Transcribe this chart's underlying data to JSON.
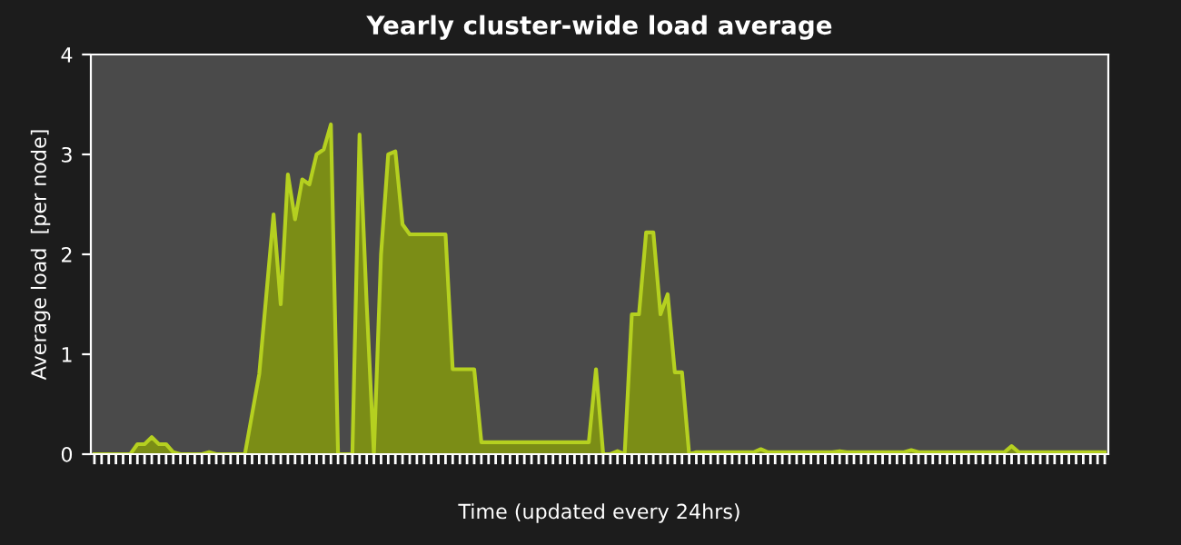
{
  "chart_data": {
    "type": "area",
    "title": "Yearly cluster-wide load average",
    "xlabel": "Time (updated every 24hrs)",
    "ylabel": "Average load  [per node]",
    "categories": [
      null,
      null,
      null,
      null,
      null,
      null,
      null,
      null,
      null,
      null,
      null,
      null,
      null,
      null,
      null,
      null,
      null,
      null,
      null,
      null,
      null,
      null,
      null,
      null,
      null,
      null,
      null,
      null,
      null,
      null,
      null,
      null,
      null,
      null,
      null,
      null,
      null,
      null,
      null,
      null,
      null,
      null,
      null,
      null,
      null,
      null,
      null,
      null,
      null,
      null,
      null,
      null,
      null,
      null,
      null,
      null,
      null,
      null,
      null,
      null,
      null,
      null,
      null,
      null,
      null,
      null,
      null,
      null,
      null,
      null,
      null,
      null,
      null,
      null,
      null,
      null,
      null,
      null,
      null,
      null,
      null,
      null,
      null,
      null,
      null,
      null,
      null,
      null,
      null,
      null,
      null,
      null,
      null,
      null,
      null,
      null,
      null,
      null,
      null,
      null,
      null,
      null,
      null,
      null,
      null,
      null,
      null,
      null,
      null,
      null,
      null,
      null,
      null,
      null,
      null,
      null,
      null,
      null,
      null,
      null,
      null,
      null,
      null,
      null,
      null,
      null,
      null,
      null,
      null,
      null,
      null,
      null,
      null,
      null,
      null,
      null,
      null,
      null,
      null,
      null,
      null,
      null
    ],
    "series": [
      {
        "color": "#b5d020",
        "values": [
          0,
          0,
          0,
          0,
          0,
          0,
          0.1,
          0.1,
          0.17,
          0.1,
          0.1,
          0.02,
          0,
          0,
          0,
          0,
          0.02,
          0,
          0,
          0,
          0,
          0,
          0.4,
          0.8,
          1.6,
          2.4,
          1.5,
          2.8,
          2.35,
          2.75,
          2.7,
          3.0,
          3.05,
          3.3,
          0,
          0,
          0,
          3.2,
          1.5,
          0,
          2.0,
          3.0,
          3.03,
          2.3,
          2.2,
          2.2,
          2.2,
          2.2,
          2.2,
          2.2,
          0.85,
          0.85,
          0.85,
          0.85,
          0.12,
          0.12,
          0.12,
          0.12,
          0.12,
          0.12,
          0.12,
          0.12,
          0.12,
          0.12,
          0.12,
          0.12,
          0.12,
          0.12,
          0.12,
          0.12,
          0.85,
          0,
          0,
          0.03,
          0,
          1.4,
          1.4,
          2.22,
          2.22,
          1.4,
          1.6,
          0.82,
          0.82,
          0,
          0.02,
          0.02,
          0.02,
          0.02,
          0.02,
          0.02,
          0.02,
          0.02,
          0.02,
          0.05,
          0.02,
          0.02,
          0.02,
          0.02,
          0.02,
          0.02,
          0.02,
          0.02,
          0.02,
          0.02,
          0.03,
          0.02,
          0.02,
          0.02,
          0.02,
          0.02,
          0.02,
          0.02,
          0.02,
          0.02,
          0.04,
          0.02,
          0.02,
          0.02,
          0.02,
          0.02,
          0.02,
          0.02,
          0.02,
          0.02,
          0.02,
          0.02,
          0.02,
          0.02,
          0.08,
          0.02,
          0.02,
          0.02,
          0.02,
          0.02,
          0.02,
          0.02,
          0.02,
          0.02,
          0.02,
          0.02,
          0.02,
          0.02
        ]
      }
    ],
    "ylim": [
      0,
      4
    ],
    "yticks": [
      0,
      1,
      2,
      3,
      4
    ],
    "grid": false,
    "legend": false
  }
}
